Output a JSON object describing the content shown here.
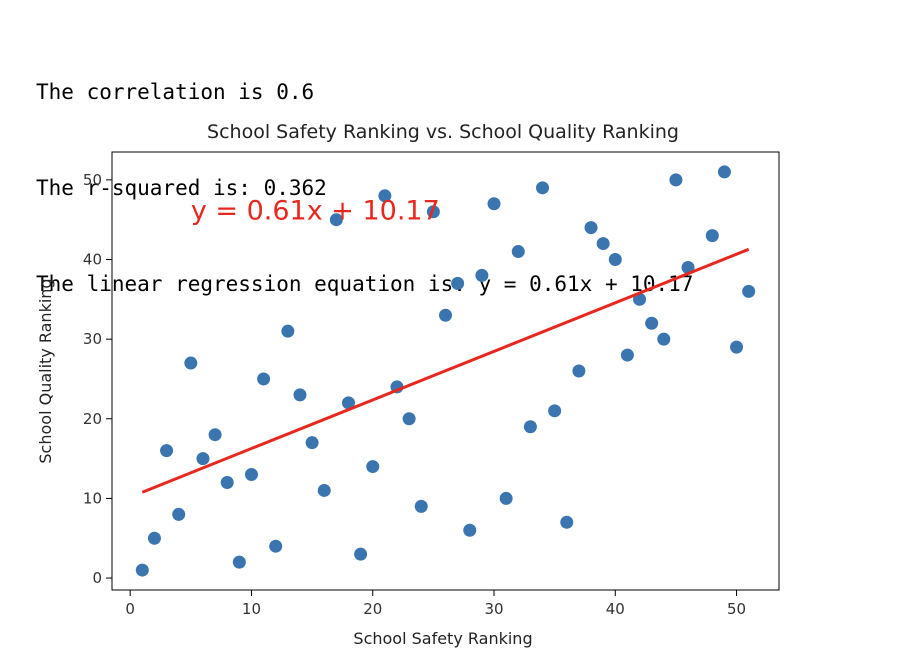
{
  "output": {
    "line1": "The correlation is 0.6",
    "line2": "The r-squared is: 0.362",
    "line3": "The linear regression equation is: y = 0.61x + 10.17"
  },
  "chart_data": {
    "type": "scatter",
    "title": "School Safety Ranking vs. School Quality Ranking",
    "xlabel": "School Safety Ranking",
    "ylabel": "School Quality Ranking",
    "xlim": [
      -1.5,
      53.5
    ],
    "ylim": [
      -1.5,
      53.5
    ],
    "xticks": [
      0,
      10,
      20,
      30,
      40,
      50
    ],
    "yticks": [
      0,
      10,
      20,
      30,
      40,
      50
    ],
    "grid": false,
    "point_color": "#3a75b0",
    "line_color": "#e8281e",
    "points": [
      [
        1,
        1
      ],
      [
        2,
        5
      ],
      [
        3,
        16
      ],
      [
        4,
        8
      ],
      [
        5,
        27
      ],
      [
        6,
        15
      ],
      [
        7,
        18
      ],
      [
        8,
        12
      ],
      [
        9,
        2
      ],
      [
        10,
        13
      ],
      [
        11,
        25
      ],
      [
        12,
        4
      ],
      [
        13,
        31
      ],
      [
        14,
        23
      ],
      [
        15,
        17
      ],
      [
        16,
        11
      ],
      [
        17,
        45
      ],
      [
        18,
        22
      ],
      [
        19,
        3
      ],
      [
        20,
        14
      ],
      [
        21,
        48
      ],
      [
        22,
        24
      ],
      [
        23,
        20
      ],
      [
        24,
        9
      ],
      [
        25,
        46
      ],
      [
        26,
        33
      ],
      [
        27,
        37
      ],
      [
        28,
        6
      ],
      [
        29,
        38
      ],
      [
        30,
        47
      ],
      [
        31,
        10
      ],
      [
        32,
        41
      ],
      [
        33,
        19
      ],
      [
        34,
        49
      ],
      [
        35,
        21
      ],
      [
        36,
        7
      ],
      [
        37,
        26
      ],
      [
        38,
        44
      ],
      [
        39,
        42
      ],
      [
        40,
        40
      ],
      [
        41,
        28
      ],
      [
        42,
        35
      ],
      [
        43,
        32
      ],
      [
        44,
        30
      ],
      [
        45,
        50
      ],
      [
        46,
        39
      ],
      [
        48,
        43
      ],
      [
        49,
        51
      ],
      [
        50,
        29
      ],
      [
        51,
        36
      ]
    ],
    "regression": {
      "slope": 0.61,
      "intercept": 10.17,
      "x_range": [
        1,
        51
      ]
    },
    "annotation": {
      "text": "y = 0.61x + 10.17",
      "x": 5,
      "y": 45
    }
  }
}
